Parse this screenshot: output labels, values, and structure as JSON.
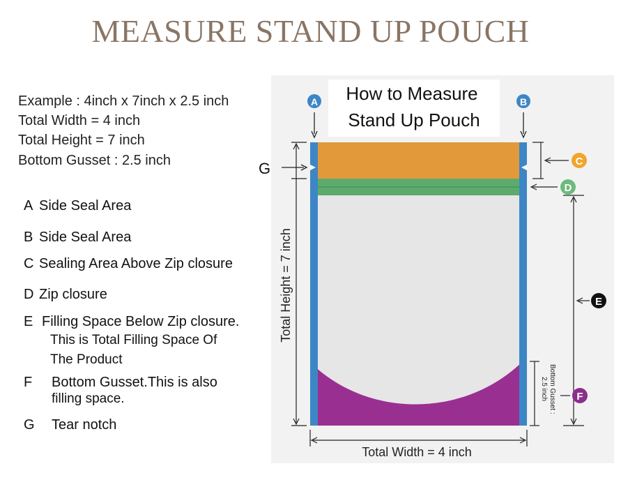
{
  "title": "MEASURE STAND UP POUCH",
  "example": {
    "line1": "Example : 4inch x 7inch x 2.5 inch",
    "line2": "Total Width  = 4 inch",
    "line3": "Total Height = 7 inch",
    "line4": "Bottom Gusset : 2.5 inch"
  },
  "legend": [
    {
      "key": "A",
      "text": "Side Seal Area"
    },
    {
      "key": "B",
      "text": "Side Seal Area"
    },
    {
      "key": "C",
      "text": "Sealing Area Above Zip closure"
    },
    {
      "key": "D",
      "text": "Zip closure"
    },
    {
      "key": "E",
      "text": "Filling Space Below Zip closure.",
      "line2": "This is Total Filling Space Of",
      "line3": "The Product"
    },
    {
      "key": "F",
      "text": "Bottom Gusset.This is also",
      "line2": "filling space."
    },
    {
      "key": "G",
      "text": "Tear notch"
    }
  ],
  "diagram": {
    "heading_line1": "How to Measure",
    "heading_line2": "Stand Up Pouch",
    "label_a": "A",
    "label_b": "B",
    "label_c": "C",
    "label_d": "D",
    "label_e": "E",
    "label_f": "F",
    "label_g": "G",
    "total_height": "Total Height = 7 inch",
    "total_width": "Total Width = 4 inch",
    "gusset_line1": "Bottom Gusset :",
    "gusset_line2": "2.5 inch",
    "colors": {
      "side_seal": "#3d86c6",
      "top_seal": "#e2993a",
      "zip": "#5daa6d",
      "body": "#e6e6e6",
      "gusset": "#9a2f92",
      "badge_blue": "#3d86c6",
      "badge_orange": "#f0a52c",
      "badge_green": "#6dbb7b",
      "badge_purple": "#8b2e8c",
      "badge_black": "#111111"
    }
  }
}
